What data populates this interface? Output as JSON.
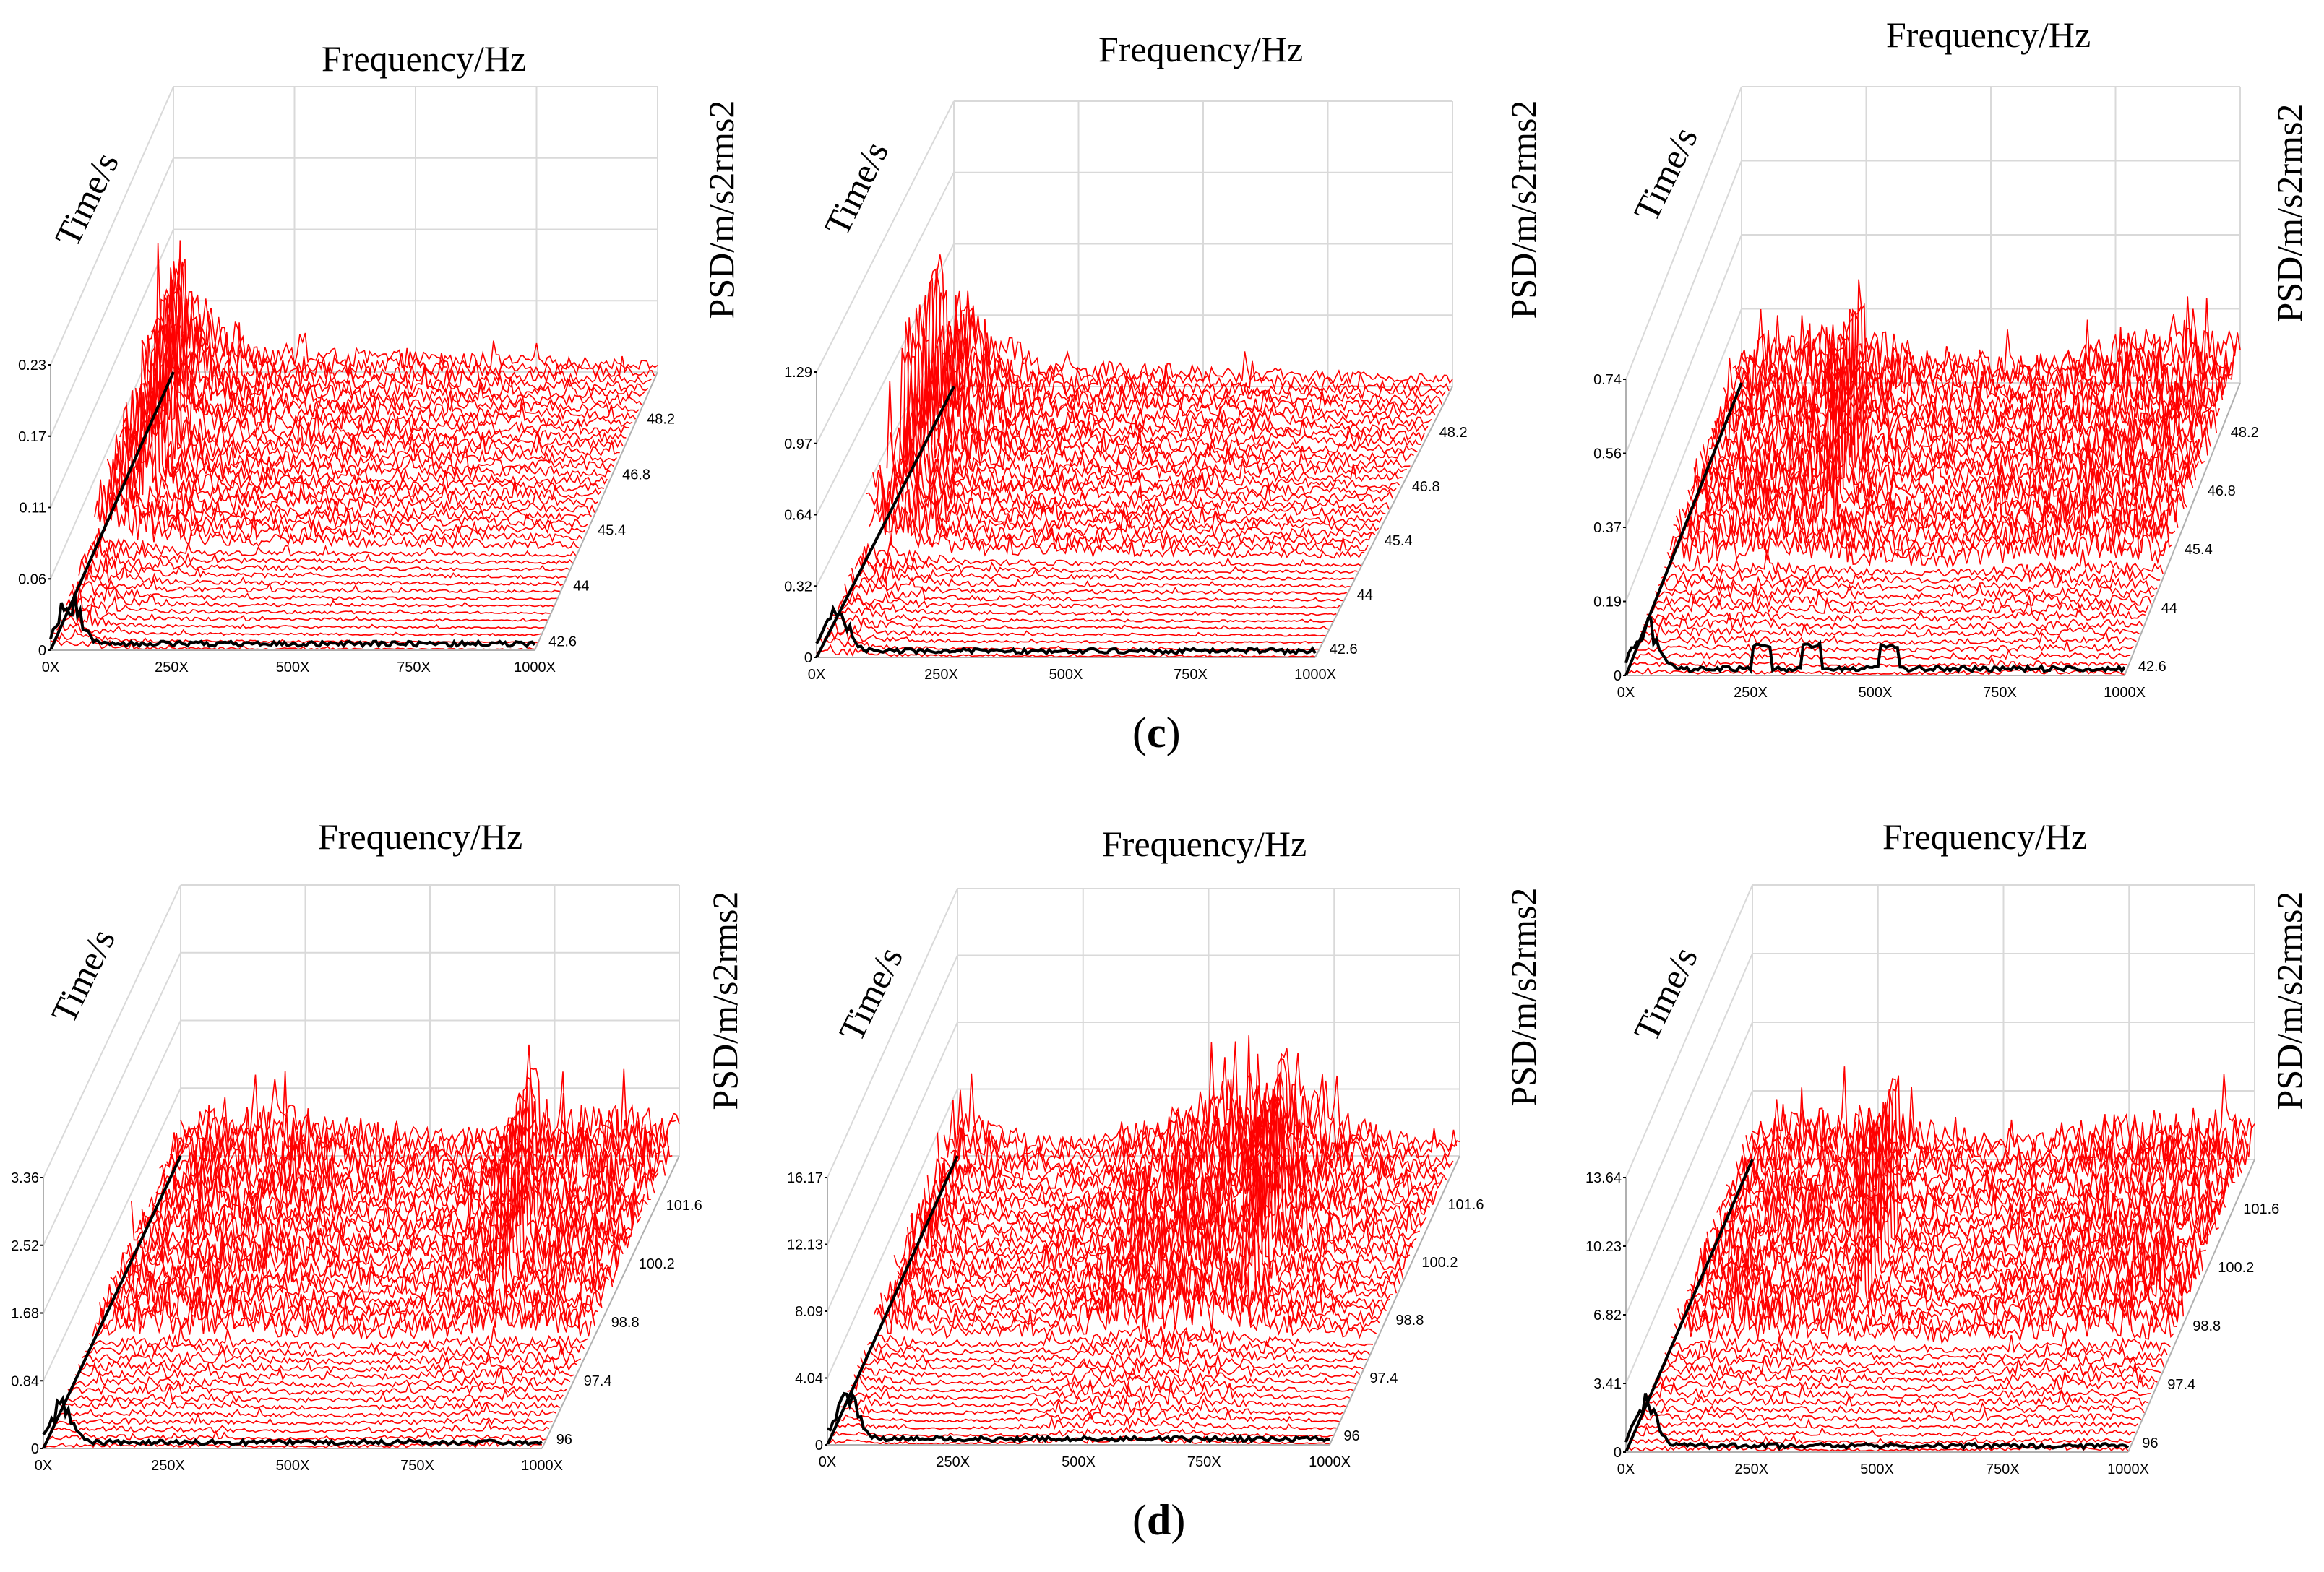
{
  "figure": {
    "caption_c": "c",
    "caption_d": "d",
    "colors": {
      "trace": "#ff0000",
      "baseline_trace": "#000000",
      "grid": "#d9d9d9",
      "axis": "#000000",
      "frame": "#b0b0b0"
    }
  },
  "chart_data": [
    {
      "type": "line",
      "id": "c1",
      "title": "",
      "xlabel": "Frequency/Hz",
      "ylabel": "Time/s",
      "zlabel": "PSD/m/s2rms2",
      "x_ticks": [
        "0X",
        "250X",
        "500X",
        "750X",
        "1000X"
      ],
      "time_ticks": [
        "42.6",
        "44",
        "45.4",
        "46.8",
        "48.2"
      ],
      "psd_ticks": [
        "0",
        "0.06",
        "0.11",
        "0.17",
        "0.23"
      ],
      "time_range": [
        42.6,
        48.9
      ],
      "xlim": [
        0,
        1000
      ],
      "zlim": [
        0,
        0.23
      ],
      "series_count": 40,
      "peak_position": 0.08,
      "activity_profile": "front-heavy"
    },
    {
      "type": "line",
      "id": "c2",
      "title": "",
      "xlabel": "Frequency/Hz",
      "ylabel": "Time/s",
      "zlabel": "PSD/m/s2rms2",
      "x_ticks": [
        "0X",
        "250X",
        "500X",
        "750X",
        "1000X"
      ],
      "time_ticks": [
        "42.6",
        "44",
        "45.4",
        "46.8",
        "48.2"
      ],
      "psd_ticks": [
        "0",
        "0.32",
        "0.64",
        "0.97",
        "1.29"
      ],
      "time_range": [
        42.6,
        48.9
      ],
      "xlim": [
        0,
        1000
      ],
      "zlim": [
        0,
        1.29
      ],
      "series_count": 40,
      "peak_position": 0.05,
      "activity_profile": "front-heavy"
    },
    {
      "type": "line",
      "id": "c3",
      "title": "",
      "xlabel": "Frequency/Hz",
      "ylabel": "Time/s",
      "zlabel": "PSD/m/s2rms2",
      "x_ticks": [
        "0X",
        "250X",
        "500X",
        "750X",
        "1000X"
      ],
      "time_ticks": [
        "42.6",
        "44",
        "45.4",
        "46.8",
        "48.2"
      ],
      "psd_ticks": [
        "0",
        "0.19",
        "0.37",
        "0.56",
        "0.74"
      ],
      "time_range": [
        42.6,
        48.9
      ],
      "xlim": [
        0,
        1000
      ],
      "zlim": [
        0,
        0.74
      ],
      "series_count": 40,
      "peak_position": 0.3,
      "activity_profile": "broad"
    },
    {
      "type": "line",
      "id": "d1",
      "title": "",
      "xlabel": "Frequency/Hz",
      "ylabel": "Time/s",
      "zlabel": "PSD/m/s2rms2",
      "x_ticks": [
        "0X",
        "250X",
        "500X",
        "750X",
        "1000X"
      ],
      "time_ticks": [
        "96",
        "97.4",
        "98.8",
        "100.2",
        "101.6"
      ],
      "psd_ticks": [
        "0",
        "0.84",
        "1.68",
        "2.52",
        "3.36"
      ],
      "time_range": [
        96,
        102.3
      ],
      "xlim": [
        0,
        1000
      ],
      "zlim": [
        0,
        3.36
      ],
      "series_count": 40,
      "peak_position": 0.78,
      "activity_profile": "broad"
    },
    {
      "type": "line",
      "id": "d2",
      "title": "",
      "xlabel": "Frequency/Hz",
      "ylabel": "Time/s",
      "zlabel": "PSD/m/s2rms2",
      "x_ticks": [
        "0X",
        "250X",
        "500X",
        "750X",
        "1000X"
      ],
      "time_ticks": [
        "96",
        "97.4",
        "98.8",
        "100.2",
        "101.6"
      ],
      "psd_ticks": [
        "0",
        "4.04",
        "8.09",
        "12.13",
        "16.17"
      ],
      "time_range": [
        96,
        102.3
      ],
      "xlim": [
        0,
        1000
      ],
      "zlim": [
        0,
        16.17
      ],
      "series_count": 40,
      "peak_position": 0.72,
      "activity_profile": "mid"
    },
    {
      "type": "line",
      "id": "d3",
      "title": "",
      "xlabel": "Frequency/Hz",
      "ylabel": "Time/s",
      "zlabel": "PSD/m/s2rms2",
      "x_ticks": [
        "0X",
        "250X",
        "500X",
        "750X",
        "1000X"
      ],
      "time_ticks": [
        "96",
        "97.4",
        "98.8",
        "100.2",
        "101.6"
      ],
      "psd_ticks": [
        "0",
        "3.41",
        "6.82",
        "10.23",
        "13.64"
      ],
      "time_range": [
        96,
        102.3
      ],
      "xlim": [
        0,
        1000
      ],
      "zlim": [
        0,
        13.64
      ],
      "series_count": 40,
      "peak_position": 0.35,
      "activity_profile": "broad"
    }
  ]
}
